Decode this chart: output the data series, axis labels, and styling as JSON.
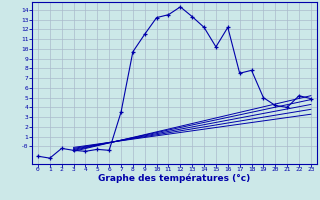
{
  "xlabel": "Graphe des températures (°c)",
  "background_color": "#cce8e8",
  "grid_color": "#aabbcc",
  "line_color": "#0000aa",
  "xlim": [
    -0.5,
    23.5
  ],
  "ylim": [
    -1.8,
    14.8
  ],
  "xticks": [
    0,
    1,
    2,
    3,
    4,
    5,
    6,
    7,
    8,
    9,
    10,
    11,
    12,
    13,
    14,
    15,
    16,
    17,
    18,
    19,
    20,
    21,
    22,
    23
  ],
  "yticks": [
    0,
    1,
    2,
    3,
    4,
    5,
    6,
    7,
    8,
    9,
    10,
    11,
    12,
    13,
    14
  ],
  "ytick_labels": [
    "-0",
    "1",
    "2",
    "3",
    "4",
    "5",
    "6",
    "7",
    "8",
    "9",
    "10",
    "11",
    "12",
    "13",
    "14"
  ],
  "main_x": [
    0,
    1,
    2,
    3,
    4,
    5,
    6,
    7,
    8,
    9,
    10,
    11,
    12,
    13,
    14,
    15,
    16,
    17,
    18,
    19,
    20,
    21,
    22,
    23
  ],
  "main_y": [
    -1.0,
    -1.2,
    -0.2,
    -0.4,
    -0.5,
    -0.3,
    -0.4,
    3.5,
    9.7,
    11.5,
    13.2,
    13.5,
    14.3,
    13.3,
    12.2,
    10.2,
    12.2,
    7.5,
    7.8,
    5.0,
    4.2,
    4.0,
    5.2,
    4.9
  ],
  "ref_lines": [
    {
      "x": [
        3,
        23
      ],
      "y": [
        -0.5,
        5.2
      ]
    },
    {
      "x": [
        3,
        23
      ],
      "y": [
        -0.4,
        4.8
      ]
    },
    {
      "x": [
        3,
        23
      ],
      "y": [
        -0.3,
        4.3
      ]
    },
    {
      "x": [
        3,
        23
      ],
      "y": [
        -0.2,
        3.8
      ]
    },
    {
      "x": [
        3,
        23
      ],
      "y": [
        -0.1,
        3.3
      ]
    }
  ]
}
